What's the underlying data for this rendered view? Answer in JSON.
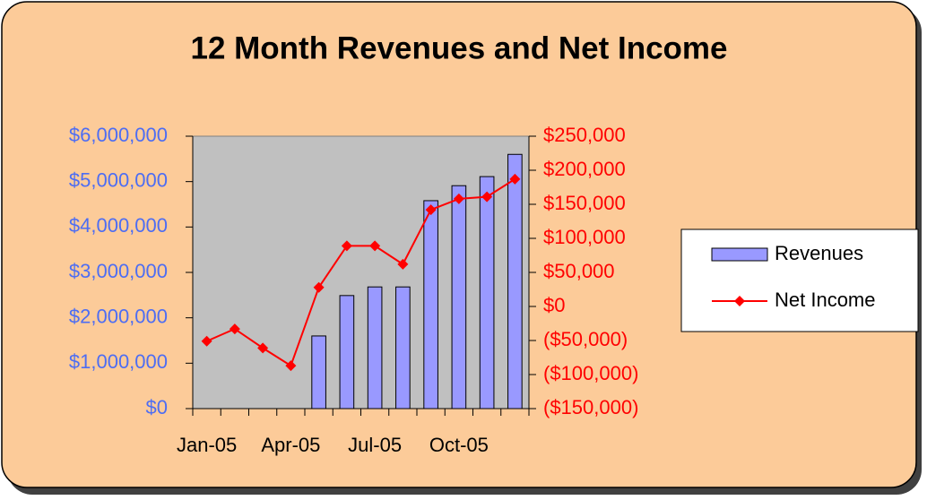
{
  "chart_data": {
    "type": "bar_line",
    "title": "12 Month Revenues and Net Income",
    "categories": [
      "Jan-05",
      null,
      null,
      "Apr-05",
      null,
      null,
      "Jul-05",
      null,
      null,
      "Oct-05",
      null,
      null
    ],
    "series": [
      {
        "name": "Revenues",
        "type": "bar",
        "color": "#9999FF",
        "axis": "y",
        "values": [
          0,
          0,
          0,
          0,
          1600000,
          2490000,
          2680000,
          2680000,
          4580000,
          4910000,
          5110000,
          5600000
        ]
      },
      {
        "name": "Net Income",
        "type": "line",
        "color": "#FF0000",
        "axis": "y2",
        "values": [
          -51000,
          -33000,
          -61000,
          -87000,
          28000,
          89000,
          89000,
          62000,
          142000,
          158000,
          161000,
          187000
        ]
      }
    ],
    "ylim": [
      0,
      6000000
    ],
    "yticks": [
      {
        "value": 0,
        "label": "$0"
      },
      {
        "value": 1000000,
        "label": "$1,000,000"
      },
      {
        "value": 2000000,
        "label": "$2,000,000"
      },
      {
        "value": 3000000,
        "label": "$3,000,000"
      },
      {
        "value": 4000000,
        "label": "$4,000,000"
      },
      {
        "value": 5000000,
        "label": "$5,000,000"
      },
      {
        "value": 6000000,
        "label": "$6,000,000"
      }
    ],
    "y2lim": [
      -150000,
      250000
    ],
    "y2ticks": [
      {
        "value": -150000,
        "label": "($150,000)"
      },
      {
        "value": -100000,
        "label": "($100,000)"
      },
      {
        "value": -50000,
        "label": "($50,000)"
      },
      {
        "value": 0,
        "label": "$0"
      },
      {
        "value": 50000,
        "label": "$50,000"
      },
      {
        "value": 100000,
        "label": "$100,000"
      },
      {
        "value": 150000,
        "label": "$150,000"
      },
      {
        "value": 200000,
        "label": "$200,000"
      },
      {
        "value": 250000,
        "label": "$250,000"
      }
    ],
    "y_color": "#4D6DF3",
    "y2_color": "#FF0000",
    "plot_background": "#C0C0C0",
    "legend": "right"
  }
}
